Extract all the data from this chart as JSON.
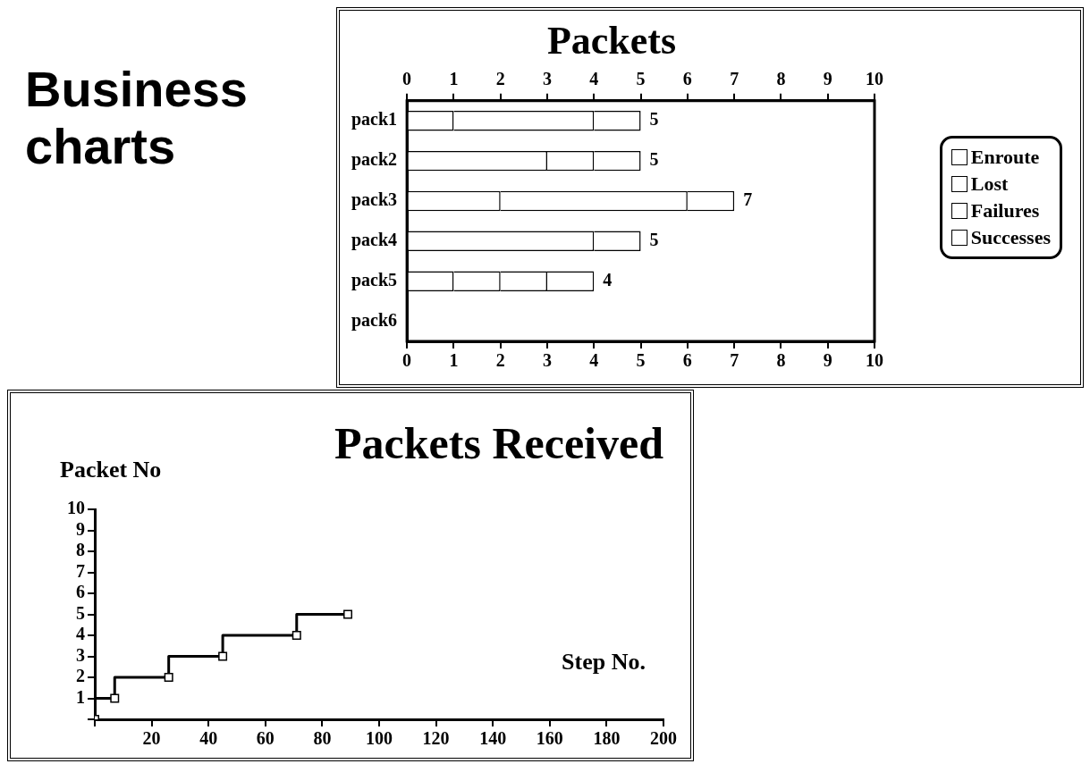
{
  "chart_data": [
    {
      "type": "other",
      "title": "Business charts"
    },
    {
      "type": "bar",
      "title": "Packets",
      "orientation": "horizontal",
      "stacked": true,
      "categories": [
        "pack1",
        "pack2",
        "pack3",
        "pack4",
        "pack5",
        "pack6"
      ],
      "series": [
        {
          "name": "Enroute",
          "color": "#ffffff",
          "values": [
            1,
            3,
            2,
            4,
            1,
            null
          ]
        },
        {
          "name": "Lost",
          "color": "#ffffff",
          "values": [
            3,
            1,
            4,
            null,
            1,
            null
          ]
        },
        {
          "name": "Failures",
          "color": "#ffffff",
          "values": [
            1,
            1,
            1,
            1,
            1,
            null
          ]
        },
        {
          "name": "Successes",
          "color": "#ffffff",
          "values": [
            null,
            null,
            null,
            null,
            1,
            null
          ]
        }
      ],
      "xlim": [
        0,
        10
      ],
      "xticks": [
        0,
        1,
        2,
        3,
        4,
        5,
        6,
        7,
        8,
        9,
        10
      ],
      "x2lim": [
        0,
        10
      ],
      "x2ticks": [
        0,
        1,
        2,
        3,
        4,
        5,
        6,
        7,
        8,
        9,
        10
      ],
      "totals": [
        "5",
        "5",
        "7",
        "5",
        "4",
        null
      ],
      "legend": "right",
      "grid": false
    },
    {
      "type": "step",
      "title": "Packets Received",
      "xlabel": "Step No.",
      "ylabel": "Packet No",
      "x": [
        0,
        7,
        26,
        45,
        71,
        89
      ],
      "values": [
        0,
        1,
        2,
        3,
        4,
        5
      ],
      "color": "#000000",
      "marker": "square",
      "xlim": [
        0,
        200
      ],
      "xticks": [
        {
          "value": 0,
          "label": null
        },
        20,
        40,
        60,
        80,
        100,
        120,
        140,
        160,
        180,
        200
      ],
      "ylim": [
        0,
        10
      ],
      "yticks": [
        {
          "value": 0,
          "label": null
        },
        1,
        2,
        3,
        4,
        5,
        6,
        7,
        8,
        9,
        10
      ],
      "grid": false
    }
  ]
}
